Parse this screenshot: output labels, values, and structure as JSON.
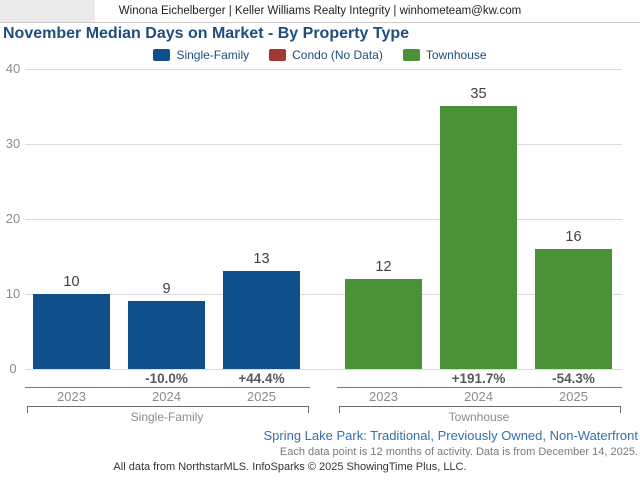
{
  "header": {
    "contact_line": "Winona Eichelberger | Keller Williams Realty Integrity | winhometeam@kw.com"
  },
  "title": "November Median Days on Market - By Property Type",
  "legend": [
    {
      "label": "Single-Family",
      "color": "#0e4f8c"
    },
    {
      "label": "Condo (No Data)",
      "color": "#a43734"
    },
    {
      "label": "Townhouse",
      "color": "#4b9138"
    }
  ],
  "chart_data": {
    "type": "bar",
    "title": "November Median Days on Market - By Property Type",
    "xlabel": "",
    "ylabel": "",
    "ylim": [
      0,
      40
    ],
    "yticks": [
      0,
      10,
      20,
      30,
      40
    ],
    "grid": true,
    "legend_position": "top",
    "series_without_data": "Condo (No Data)",
    "groups": [
      {
        "name": "Single-Family",
        "color": "#0e4f8c",
        "categories": [
          "2023",
          "2024",
          "2025"
        ],
        "values": [
          10,
          9,
          13
        ],
        "pct_change": [
          null,
          "-10.0%",
          "+44.4%"
        ]
      },
      {
        "name": "Townhouse",
        "color": "#4b9138",
        "categories": [
          "2023",
          "2024",
          "2025"
        ],
        "values": [
          12,
          35,
          16
        ],
        "pct_change": [
          null,
          "+191.7%",
          "-54.3%"
        ]
      }
    ]
  },
  "footer": {
    "filter_line": "Spring Lake Park: Traditional, Previously Owned, Non-Waterfront",
    "data_note": "Each data point is 12 months of activity. Data is from December 14, 2025.",
    "attribution": "All data from NorthstarMLS. InfoSparks © 2025 ShowingTime Plus, LLC."
  },
  "colors": {
    "title_text": "#1d4e7e",
    "gridline": "#dcdcdc",
    "axis_line": "#7a7a7a",
    "tick_text": "#8c8c8c",
    "value_text": "#3f3f3f",
    "pct_text": "#595959",
    "filter_text": "#366fad",
    "logo_placeholder": "#eaeaea"
  }
}
